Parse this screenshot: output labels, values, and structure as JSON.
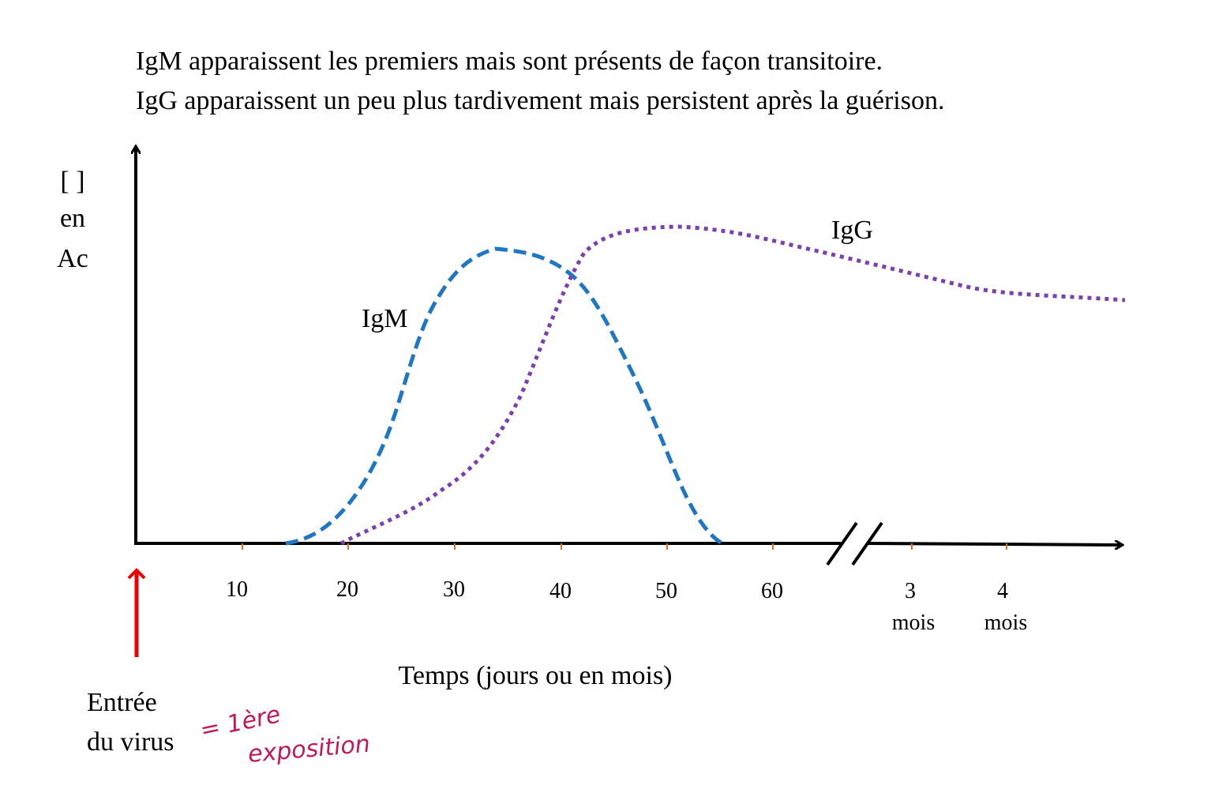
{
  "header": {
    "lines": [
      "IgM apparaissent  les premiers mais sont présents de façon transitoire.",
      "IgG apparaissent  un peu plus tardivement mais persistent  après la guérison."
    ]
  },
  "axes": {
    "y_label": [
      "[  ]",
      "en",
      "Ac"
    ],
    "x_label": "Temps (jours ou en mois)",
    "x_ticks": [
      "10",
      "20",
      "30",
      "40",
      "50",
      "60"
    ],
    "x_ticks_months": [
      {
        "number": "3",
        "unit": "mois"
      },
      {
        "number": "4",
        "unit": "mois"
      }
    ]
  },
  "curves": {
    "igm": "IgM",
    "igg": "IgG"
  },
  "annotation": {
    "lines": [
      "Entrée",
      "du virus"
    ],
    "handwritten": [
      "= 1ère",
      "exposition"
    ]
  }
}
